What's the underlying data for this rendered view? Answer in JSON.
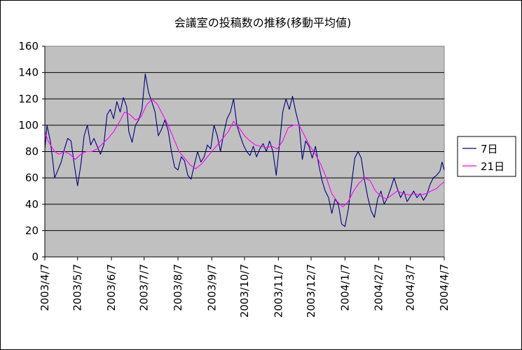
{
  "chart_data": {
    "type": "line",
    "title": "会議室の投稿数の推移(移動平均値)",
    "xlabel": "",
    "ylabel": "",
    "ylim": [
      0,
      160
    ],
    "yticks": [
      0,
      20,
      40,
      60,
      80,
      100,
      120,
      140,
      160
    ],
    "xlim": [
      "2003-04-07",
      "2004-04-07"
    ],
    "xtick_labels": [
      "2003/4/7",
      "2003/5/7",
      "2003/6/7",
      "2003/7/7",
      "2003/8/7",
      "2003/9/7",
      "2003/10/7",
      "2003/11/7",
      "2003/12/7",
      "2004/1/7",
      "2004/2/7",
      "2004/3/7",
      "2004/4/7"
    ],
    "xtick_dates": [
      "2003-04-07",
      "2003-05-07",
      "2003-06-07",
      "2003-07-07",
      "2003-08-07",
      "2003-09-07",
      "2003-10-07",
      "2003-11-07",
      "2003-12-07",
      "2004-01-07",
      "2004-02-07",
      "2004-03-07",
      "2004-04-07"
    ],
    "grid": "horizontal",
    "legend": "right",
    "background_color": "#c0c0c0",
    "series": [
      {
        "name": "7日",
        "color": "#000080",
        "points": [
          [
            "2003-04-07",
            82
          ],
          [
            "2003-04-09",
            100
          ],
          [
            "2003-04-12",
            88
          ],
          [
            "2003-04-14",
            75
          ],
          [
            "2003-04-16",
            60
          ],
          [
            "2003-04-19",
            66
          ],
          [
            "2003-04-22",
            72
          ],
          [
            "2003-04-25",
            82
          ],
          [
            "2003-04-28",
            90
          ],
          [
            "2003-05-01",
            88
          ],
          [
            "2003-05-04",
            70
          ],
          [
            "2003-05-07",
            54
          ],
          [
            "2003-05-10",
            70
          ],
          [
            "2003-05-13",
            92
          ],
          [
            "2003-05-16",
            100
          ],
          [
            "2003-05-19",
            85
          ],
          [
            "2003-05-22",
            90
          ],
          [
            "2003-05-25",
            84
          ],
          [
            "2003-05-28",
            78
          ],
          [
            "2003-05-31",
            85
          ],
          [
            "2003-06-03",
            108
          ],
          [
            "2003-06-06",
            112
          ],
          [
            "2003-06-09",
            105
          ],
          [
            "2003-06-12",
            118
          ],
          [
            "2003-06-15",
            110
          ],
          [
            "2003-06-18",
            121
          ],
          [
            "2003-06-21",
            114
          ],
          [
            "2003-06-23",
            95
          ],
          [
            "2003-06-26",
            87
          ],
          [
            "2003-06-29",
            100
          ],
          [
            "2003-07-02",
            104
          ],
          [
            "2003-07-05",
            112
          ],
          [
            "2003-07-08",
            139
          ],
          [
            "2003-07-11",
            125
          ],
          [
            "2003-07-14",
            118
          ],
          [
            "2003-07-17",
            110
          ],
          [
            "2003-07-20",
            92
          ],
          [
            "2003-07-23",
            97
          ],
          [
            "2003-07-26",
            104
          ],
          [
            "2003-07-29",
            96
          ],
          [
            "2003-08-01",
            80
          ],
          [
            "2003-08-04",
            68
          ],
          [
            "2003-08-07",
            66
          ],
          [
            "2003-08-10",
            76
          ],
          [
            "2003-08-13",
            73
          ],
          [
            "2003-08-16",
            62
          ],
          [
            "2003-08-19",
            59
          ],
          [
            "2003-08-22",
            70
          ],
          [
            "2003-08-25",
            80
          ],
          [
            "2003-08-28",
            72
          ],
          [
            "2003-08-31",
            76
          ],
          [
            "2003-09-03",
            85
          ],
          [
            "2003-09-06",
            82
          ],
          [
            "2003-09-09",
            100
          ],
          [
            "2003-09-12",
            92
          ],
          [
            "2003-09-15",
            80
          ],
          [
            "2003-09-18",
            94
          ],
          [
            "2003-09-21",
            105
          ],
          [
            "2003-09-24",
            110
          ],
          [
            "2003-09-27",
            120
          ],
          [
            "2003-09-30",
            100
          ],
          [
            "2003-10-03",
            92
          ],
          [
            "2003-10-06",
            85
          ],
          [
            "2003-10-09",
            80
          ],
          [
            "2003-10-12",
            77
          ],
          [
            "2003-10-15",
            84
          ],
          [
            "2003-10-18",
            76
          ],
          [
            "2003-10-21",
            82
          ],
          [
            "2003-10-24",
            86
          ],
          [
            "2003-10-27",
            80
          ],
          [
            "2003-10-30",
            88
          ],
          [
            "2003-11-02",
            80
          ],
          [
            "2003-11-05",
            62
          ],
          [
            "2003-11-08",
            85
          ],
          [
            "2003-11-11",
            110
          ],
          [
            "2003-11-14",
            120
          ],
          [
            "2003-11-17",
            112
          ],
          [
            "2003-11-20",
            122
          ],
          [
            "2003-11-23",
            110
          ],
          [
            "2003-11-26",
            100
          ],
          [
            "2003-11-29",
            74
          ],
          [
            "2003-12-02",
            88
          ],
          [
            "2003-12-05",
            84
          ],
          [
            "2003-12-08",
            75
          ],
          [
            "2003-12-11",
            84
          ],
          [
            "2003-12-14",
            70
          ],
          [
            "2003-12-17",
            58
          ],
          [
            "2003-12-20",
            50
          ],
          [
            "2003-12-23",
            45
          ],
          [
            "2003-12-26",
            33
          ],
          [
            "2003-12-29",
            44
          ],
          [
            "2004-01-01",
            40
          ],
          [
            "2004-01-04",
            25
          ],
          [
            "2004-01-07",
            23
          ],
          [
            "2004-01-10",
            36
          ],
          [
            "2004-01-13",
            55
          ],
          [
            "2004-01-16",
            75
          ],
          [
            "2004-01-19",
            80
          ],
          [
            "2004-01-22",
            75
          ],
          [
            "2004-01-25",
            58
          ],
          [
            "2004-01-28",
            45
          ],
          [
            "2004-01-31",
            35
          ],
          [
            "2004-02-03",
            30
          ],
          [
            "2004-02-06",
            44
          ],
          [
            "2004-02-09",
            50
          ],
          [
            "2004-02-12",
            40
          ],
          [
            "2004-02-15",
            45
          ],
          [
            "2004-02-18",
            52
          ],
          [
            "2004-02-21",
            60
          ],
          [
            "2004-02-24",
            52
          ],
          [
            "2004-02-27",
            45
          ],
          [
            "2004-03-01",
            50
          ],
          [
            "2004-03-04",
            42
          ],
          [
            "2004-03-07",
            46
          ],
          [
            "2004-03-10",
            50
          ],
          [
            "2004-03-13",
            45
          ],
          [
            "2004-03-16",
            48
          ],
          [
            "2004-03-19",
            43
          ],
          [
            "2004-03-22",
            47
          ],
          [
            "2004-03-25",
            55
          ],
          [
            "2004-03-28",
            60
          ],
          [
            "2004-03-31",
            62
          ],
          [
            "2004-04-03",
            65
          ],
          [
            "2004-04-05",
            72
          ],
          [
            "2004-04-07",
            66
          ]
        ]
      },
      {
        "name": "21日",
        "color": "#ff00ff",
        "points": [
          [
            "2003-04-07",
            95
          ],
          [
            "2003-04-10",
            88
          ],
          [
            "2003-04-13",
            84
          ],
          [
            "2003-04-16",
            80
          ],
          [
            "2003-04-20",
            78
          ],
          [
            "2003-04-25",
            80
          ],
          [
            "2003-04-30",
            78
          ],
          [
            "2003-05-05",
            74
          ],
          [
            "2003-05-10",
            78
          ],
          [
            "2003-05-15",
            80
          ],
          [
            "2003-05-20",
            80
          ],
          [
            "2003-05-25",
            82
          ],
          [
            "2003-05-30",
            86
          ],
          [
            "2003-06-04",
            90
          ],
          [
            "2003-06-09",
            95
          ],
          [
            "2003-06-14",
            102
          ],
          [
            "2003-06-19",
            110
          ],
          [
            "2003-06-24",
            108
          ],
          [
            "2003-06-29",
            104
          ],
          [
            "2003-07-04",
            106
          ],
          [
            "2003-07-09",
            115
          ],
          [
            "2003-07-14",
            120
          ],
          [
            "2003-07-19",
            116
          ],
          [
            "2003-07-24",
            108
          ],
          [
            "2003-07-29",
            100
          ],
          [
            "2003-08-03",
            90
          ],
          [
            "2003-08-08",
            80
          ],
          [
            "2003-08-13",
            75
          ],
          [
            "2003-08-18",
            70
          ],
          [
            "2003-08-23",
            67
          ],
          [
            "2003-08-28",
            70
          ],
          [
            "2003-09-02",
            75
          ],
          [
            "2003-09-07",
            80
          ],
          [
            "2003-09-12",
            85
          ],
          [
            "2003-09-17",
            90
          ],
          [
            "2003-09-22",
            95
          ],
          [
            "2003-09-27",
            103
          ],
          [
            "2003-10-02",
            98
          ],
          [
            "2003-10-07",
            92
          ],
          [
            "2003-10-12",
            88
          ],
          [
            "2003-10-17",
            85
          ],
          [
            "2003-10-22",
            84
          ],
          [
            "2003-10-27",
            83
          ],
          [
            "2003-11-01",
            84
          ],
          [
            "2003-11-06",
            82
          ],
          [
            "2003-11-11",
            88
          ],
          [
            "2003-11-16",
            98
          ],
          [
            "2003-11-21",
            100
          ],
          [
            "2003-11-26",
            100
          ],
          [
            "2003-12-01",
            92
          ],
          [
            "2003-12-06",
            84
          ],
          [
            "2003-12-11",
            78
          ],
          [
            "2003-12-16",
            70
          ],
          [
            "2003-12-21",
            60
          ],
          [
            "2003-12-26",
            48
          ],
          [
            "2003-12-31",
            42
          ],
          [
            "2004-01-05",
            38
          ],
          [
            "2004-01-10",
            42
          ],
          [
            "2004-01-15",
            50
          ],
          [
            "2004-01-20",
            56
          ],
          [
            "2004-01-25",
            60
          ],
          [
            "2004-01-30",
            58
          ],
          [
            "2004-02-04",
            50
          ],
          [
            "2004-02-09",
            46
          ],
          [
            "2004-02-14",
            44
          ],
          [
            "2004-02-19",
            47
          ],
          [
            "2004-02-24",
            50
          ],
          [
            "2004-03-01",
            48
          ],
          [
            "2004-03-06",
            47
          ],
          [
            "2004-03-11",
            48
          ],
          [
            "2004-03-16",
            47
          ],
          [
            "2004-03-21",
            48
          ],
          [
            "2004-03-26",
            50
          ],
          [
            "2004-03-31",
            52
          ],
          [
            "2004-04-04",
            55
          ],
          [
            "2004-04-07",
            57
          ]
        ]
      }
    ]
  }
}
